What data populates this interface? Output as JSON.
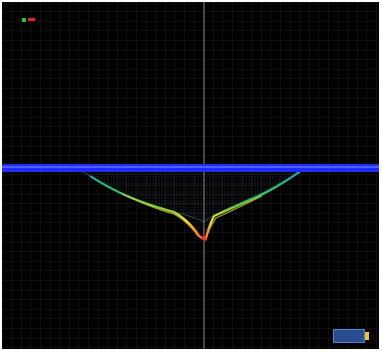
{
  "display": {
    "background": "#000000",
    "grid_color": "#1f1f1f",
    "center_line_color": "#cfcfcf",
    "waterline_color": "#1e2cff",
    "waterline_highlight": "#5a6bff"
  },
  "left_axis": {
    "labels": [
      "",
      "",
      "",
      "",
      "",
      "",
      "",
      "",
      "",
      ""
    ]
  },
  "right_axis": {
    "labels": [
      "",
      "",
      "",
      "",
      "",
      "",
      "",
      "",
      "",
      "",
      "",
      "",
      "",
      "",
      "",
      "",
      "",
      "",
      "",
      "",
      ""
    ]
  },
  "legend": {
    "colors": [
      "#2fbf3a",
      "#e02424"
    ]
  },
  "profile": {
    "color_ramp": [
      "#1aa3c9",
      "#2fbf6a",
      "#7ad334",
      "#f0e040",
      "#f08a20",
      "#ff2a2a"
    ],
    "deepest_point_color": "#ff2a2a"
  },
  "logo": {
    "text": "",
    "icon": "brand-logo-icon"
  },
  "footer": {
    "note": ""
  }
}
